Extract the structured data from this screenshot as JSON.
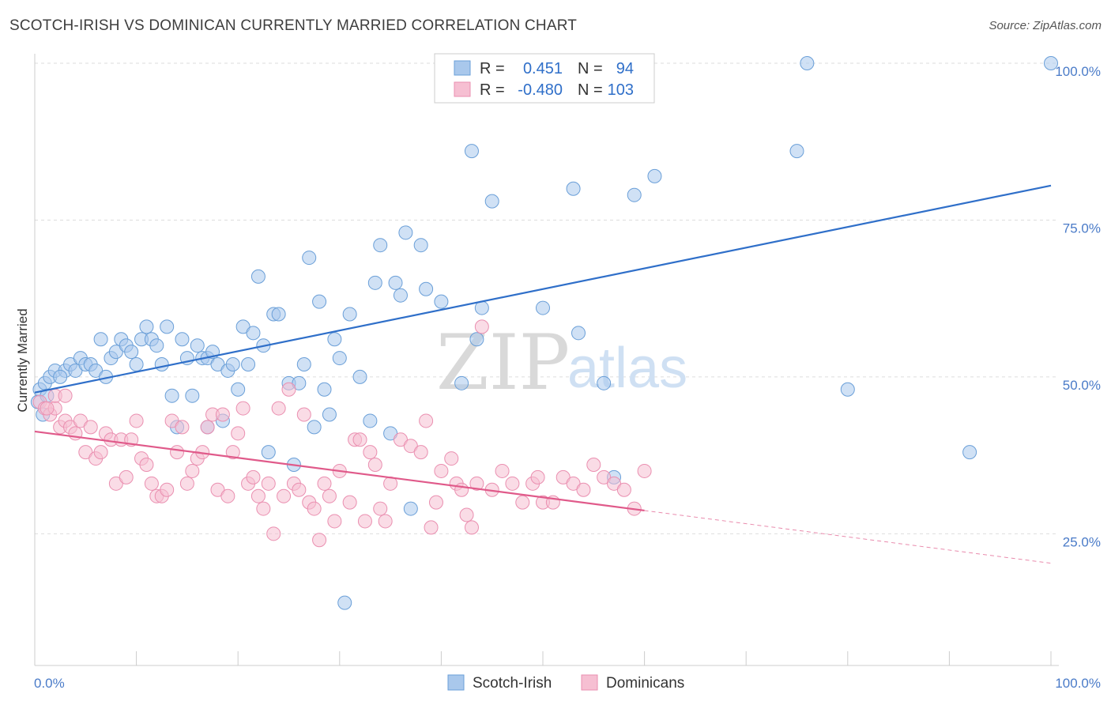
{
  "title": "SCOTCH-IRISH VS DOMINICAN CURRENTLY MARRIED CORRELATION CHART",
  "source": "Source: ZipAtlas.com",
  "watermark": {
    "zip": "ZIP",
    "atlas": "atlas"
  },
  "colors": {
    "blue": "#a9c8ec",
    "blue_edge": "#6a9fd8",
    "blue_line": "#2f6fc9",
    "pink": "#f6bfd2",
    "pink_edge": "#ea8fb0",
    "pink_line": "#e05a8a",
    "grid": "#dddddd",
    "tick": "#4a7bc8"
  },
  "legend": {
    "rows": [
      {
        "r_label": "R =",
        "r_value": "0.451",
        "n_label": "N =",
        "n_value": "94"
      },
      {
        "r_label": "R =",
        "r_value": "-0.480",
        "n_label": "N =",
        "n_value": "103"
      }
    ]
  },
  "chart_data": {
    "type": "scatter",
    "title": "SCOTCH-IRISH VS DOMINICAN CURRENTLY MARRIED CORRELATION CHART",
    "xlabel": "",
    "ylabel": "Currently Married",
    "xlim": [
      0,
      100
    ],
    "ylim": [
      4,
      100
    ],
    "x_tick_labels": [
      "0.0%",
      "100.0%"
    ],
    "y_ticks": [
      25,
      50,
      75,
      100
    ],
    "y_tick_labels": [
      "25.0%",
      "50.0%",
      "75.0%",
      "100.0%"
    ],
    "grid": true,
    "legend_position": "bottom",
    "series": [
      {
        "name": "Scotch-Irish",
        "R": 0.451,
        "N": 94,
        "trend": {
          "x": [
            0,
            100
          ],
          "y": [
            47.5,
            80.5
          ],
          "dashed_from": null
        },
        "points": [
          [
            0.5,
            48
          ],
          [
            1,
            49
          ],
          [
            1.5,
            50
          ],
          [
            2,
            51
          ],
          [
            3,
            51
          ],
          [
            3.5,
            52
          ],
          [
            4,
            51
          ],
          [
            4.5,
            53
          ],
          [
            5,
            52
          ],
          [
            5.5,
            52
          ],
          [
            6,
            51
          ],
          [
            6.5,
            56
          ],
          [
            7,
            50
          ],
          [
            7.5,
            53
          ],
          [
            8,
            54
          ],
          [
            8.5,
            56
          ],
          [
            9,
            55
          ],
          [
            9.5,
            54
          ],
          [
            10,
            52
          ],
          [
            10.5,
            56
          ],
          [
            11,
            58
          ],
          [
            11.5,
            56
          ],
          [
            12,
            55
          ],
          [
            12.5,
            52
          ],
          [
            13,
            58
          ],
          [
            13.5,
            47
          ],
          [
            14,
            42
          ],
          [
            14.5,
            56
          ],
          [
            15,
            53
          ],
          [
            15.5,
            47
          ],
          [
            16,
            55
          ],
          [
            16.5,
            53
          ],
          [
            17,
            53
          ],
          [
            17.5,
            54
          ],
          [
            18,
            52
          ],
          [
            18.5,
            43
          ],
          [
            19,
            51
          ],
          [
            19.5,
            52
          ],
          [
            20,
            48
          ],
          [
            20.5,
            58
          ],
          [
            21,
            52
          ],
          [
            21.5,
            57
          ],
          [
            22,
            66
          ],
          [
            22.5,
            55
          ],
          [
            23,
            38
          ],
          [
            23.5,
            60
          ],
          [
            24,
            60
          ],
          [
            25,
            49
          ],
          [
            25.5,
            36
          ],
          [
            26,
            49
          ],
          [
            26.5,
            52
          ],
          [
            27,
            69
          ],
          [
            27.5,
            42
          ],
          [
            28,
            62
          ],
          [
            28.5,
            48
          ],
          [
            29,
            44
          ],
          [
            29.5,
            56
          ],
          [
            30,
            53
          ],
          [
            30.5,
            14
          ],
          [
            31,
            60
          ],
          [
            32,
            50
          ],
          [
            33,
            43
          ],
          [
            33.5,
            65
          ],
          [
            34,
            71
          ],
          [
            35,
            41
          ],
          [
            35.5,
            65
          ],
          [
            36,
            63
          ],
          [
            36.5,
            73
          ],
          [
            37,
            29
          ],
          [
            38,
            71
          ],
          [
            38.5,
            64
          ],
          [
            40,
            62
          ],
          [
            42,
            49
          ],
          [
            43,
            86
          ],
          [
            43.5,
            56
          ],
          [
            44,
            61
          ],
          [
            45,
            78
          ],
          [
            50,
            61
          ],
          [
            53,
            80
          ],
          [
            53.5,
            57
          ],
          [
            56,
            49
          ],
          [
            57,
            34
          ],
          [
            59,
            79
          ],
          [
            61,
            82
          ],
          [
            75,
            86
          ],
          [
            76,
            100
          ],
          [
            80,
            48
          ],
          [
            92,
            38
          ],
          [
            100,
            100
          ],
          [
            0.3,
            46
          ],
          [
            0.8,
            44
          ],
          [
            1.2,
            47
          ],
          [
            2.5,
            50
          ],
          [
            17,
            42
          ]
        ]
      },
      {
        "name": "Dominicans",
        "R": -0.48,
        "N": 103,
        "trend": {
          "x": [
            0,
            100
          ],
          "y": [
            41.3,
            20.3
          ],
          "dashed_from": 60
        },
        "points": [
          [
            0.5,
            46
          ],
          [
            1,
            45
          ],
          [
            1.5,
            44
          ],
          [
            2,
            45
          ],
          [
            2.5,
            42
          ],
          [
            3,
            43
          ],
          [
            3.5,
            42
          ],
          [
            4,
            41
          ],
          [
            4.5,
            43
          ],
          [
            5,
            38
          ],
          [
            5.5,
            42
          ],
          [
            6,
            37
          ],
          [
            6.5,
            38
          ],
          [
            7,
            41
          ],
          [
            7.5,
            40
          ],
          [
            8,
            33
          ],
          [
            8.5,
            40
          ],
          [
            9,
            34
          ],
          [
            9.5,
            40
          ],
          [
            10,
            43
          ],
          [
            10.5,
            37
          ],
          [
            11,
            36
          ],
          [
            11.5,
            33
          ],
          [
            12,
            31
          ],
          [
            12.5,
            31
          ],
          [
            13,
            32
          ],
          [
            13.5,
            43
          ],
          [
            14,
            38
          ],
          [
            14.5,
            42
          ],
          [
            15,
            33
          ],
          [
            15.5,
            35
          ],
          [
            16,
            37
          ],
          [
            16.5,
            38
          ],
          [
            17,
            42
          ],
          [
            17.5,
            44
          ],
          [
            18,
            32
          ],
          [
            18.5,
            44
          ],
          [
            19,
            31
          ],
          [
            19.5,
            38
          ],
          [
            20,
            41
          ],
          [
            20.5,
            45
          ],
          [
            21,
            33
          ],
          [
            21.5,
            34
          ],
          [
            22,
            31
          ],
          [
            22.5,
            29
          ],
          [
            23,
            33
          ],
          [
            23.5,
            25
          ],
          [
            24,
            45
          ],
          [
            24.5,
            31
          ],
          [
            25,
            48
          ],
          [
            25.5,
            33
          ],
          [
            26,
            32
          ],
          [
            26.5,
            44
          ],
          [
            27,
            30
          ],
          [
            27.5,
            29
          ],
          [
            28,
            24
          ],
          [
            28.5,
            33
          ],
          [
            29,
            31
          ],
          [
            29.5,
            27
          ],
          [
            30,
            35
          ],
          [
            31,
            30
          ],
          [
            31.5,
            40
          ],
          [
            32,
            40
          ],
          [
            32.5,
            27
          ],
          [
            33,
            38
          ],
          [
            33.5,
            36
          ],
          [
            34,
            29
          ],
          [
            34.5,
            27
          ],
          [
            35,
            33
          ],
          [
            36,
            40
          ],
          [
            37,
            39
          ],
          [
            38,
            38
          ],
          [
            38.5,
            43
          ],
          [
            39,
            26
          ],
          [
            39.5,
            30
          ],
          [
            40,
            35
          ],
          [
            41,
            37
          ],
          [
            41.5,
            33
          ],
          [
            42,
            32
          ],
          [
            42.5,
            28
          ],
          [
            43,
            26
          ],
          [
            43.5,
            33
          ],
          [
            44,
            58
          ],
          [
            45,
            32
          ],
          [
            46,
            35
          ],
          [
            47,
            33
          ],
          [
            48,
            30
          ],
          [
            49,
            33
          ],
          [
            49.5,
            34
          ],
          [
            50,
            30
          ],
          [
            51,
            30
          ],
          [
            52,
            34
          ],
          [
            53,
            33
          ],
          [
            54,
            32
          ],
          [
            55,
            36
          ],
          [
            56,
            34
          ],
          [
            57,
            33
          ],
          [
            58,
            32
          ],
          [
            59,
            29
          ],
          [
            60,
            35
          ],
          [
            2,
            47
          ],
          [
            3,
            47
          ],
          [
            1.2,
            45
          ]
        ]
      }
    ]
  },
  "bottom_legend": [
    {
      "label": "Scotch-Irish"
    },
    {
      "label": "Dominicans"
    }
  ]
}
